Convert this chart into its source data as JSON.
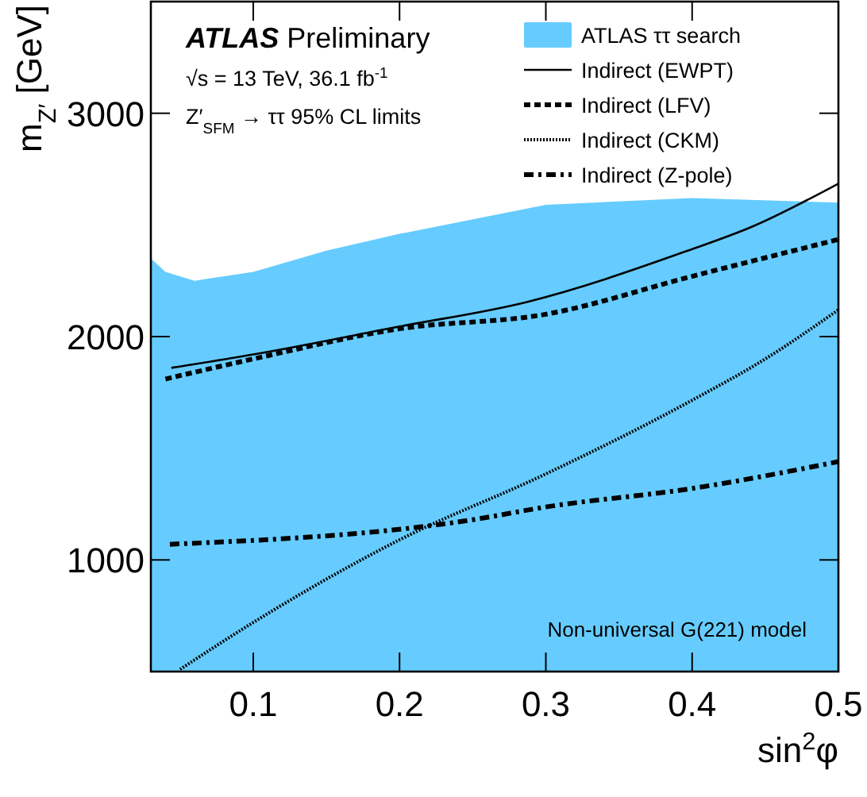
{
  "chart_data": {
    "type": "line",
    "title": "ATLAS Preliminary",
    "xlabel": "sin$^{2}$φ",
    "ylabel": "m$_{Z′}$ [GeV]",
    "annotations": [
      "√s = 13 TeV, 36.1 fb$^{-1}$",
      "Z′$_{SFM}$ → ττ 95% CL limits",
      "Non-universal G(221) model"
    ],
    "xlim": [
      0.03,
      0.5
    ],
    "xticks": [
      0.1,
      0.2,
      0.3,
      0.4,
      0.5
    ],
    "ylim": [
      500,
      3500
    ],
    "yticks": [
      1000,
      2000,
      3000
    ],
    "legend": "top right",
    "grid": false,
    "series": [
      {
        "name": "ATLAS ττ search",
        "type": "area",
        "color": "#66ccff",
        "x": [
          0.03,
          0.04,
          0.06,
          0.1,
          0.15,
          0.2,
          0.3,
          0.4,
          0.5
        ],
        "values": [
          2350,
          2290,
          2250,
          2290,
          2385,
          2460,
          2590,
          2620,
          2600
        ]
      },
      {
        "name": "Indirect (EWPT)",
        "color": "#000000",
        "line_style": "solid",
        "x": [
          0.044,
          0.1,
          0.2,
          0.287,
          0.395,
          0.442,
          0.5
        ],
        "values": [
          1860,
          1920,
          2045,
          2155,
          2380,
          2495,
          2685
        ]
      },
      {
        "name": "Indirect (LFV)",
        "color": "#000000",
        "line_style": "dashed",
        "x": [
          0.04,
          0.1,
          0.2,
          0.3,
          0.4,
          0.5
        ],
        "values": [
          1810,
          1900,
          2035,
          2100,
          2270,
          2435
        ]
      },
      {
        "name": "Indirect (CKM)",
        "color": "#000000",
        "line_style": "dotted",
        "x": [
          0.05,
          0.1,
          0.2,
          0.3,
          0.4,
          0.45,
          0.5
        ],
        "values": [
          510,
          720,
          1090,
          1385,
          1715,
          1900,
          2120
        ]
      },
      {
        "name": "Indirect (Z-pole)",
        "color": "#000000",
        "line_style": "dashdot",
        "x": [
          0.043,
          0.25,
          0.3,
          0.4,
          0.5
        ],
        "values": [
          1070,
          1180,
          1237,
          1320,
          1440
        ]
      }
    ]
  }
}
